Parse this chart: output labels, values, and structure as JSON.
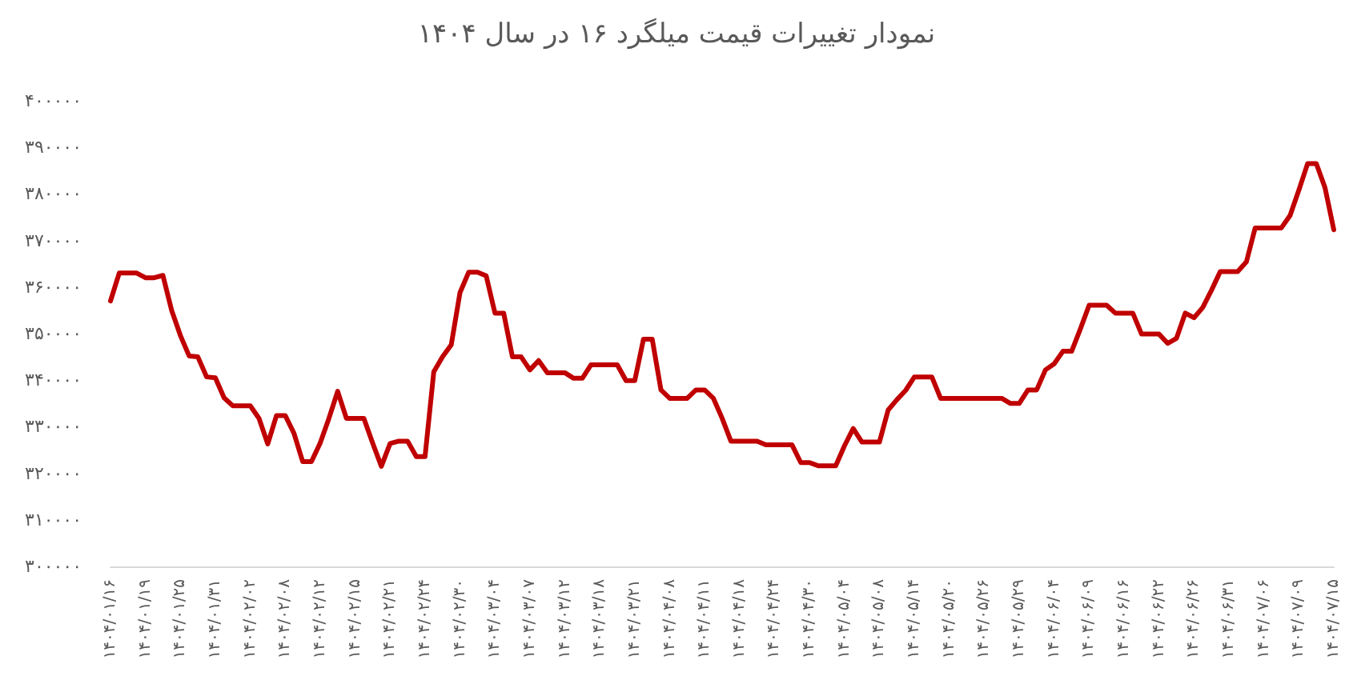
{
  "chart_data": {
    "type": "line",
    "title": "نمودار تغییرات قیمت میلگرد ۱۶ در سال ۱۴۰۴",
    "categories": [
      "۱۴۰۴/۰۱/۱۶",
      null,
      null,
      null,
      "۱۴۰۴/۰۱/۱۹",
      null,
      null,
      null,
      "۱۴۰۴/۰۱/۲۵",
      null,
      null,
      null,
      "۱۴۰۴/۰۱/۳۱",
      null,
      null,
      null,
      "۱۴۰۴/۰۲/۰۲",
      null,
      null,
      null,
      "۱۴۰۴/۰۲/۰۸",
      null,
      null,
      null,
      "۱۴۰۴/۰۲/۱۲",
      null,
      null,
      null,
      "۱۴۰۴/۰۲/۱۵",
      null,
      null,
      null,
      "۱۴۰۴/۰۲/۲۱",
      null,
      null,
      null,
      "۱۴۰۴/۰۲/۲۴",
      null,
      null,
      null,
      "۱۴۰۴/۰۲/۳۰",
      null,
      null,
      null,
      "۱۴۰۴/۰۳/۰۴",
      null,
      null,
      null,
      "۱۴۰۴/۰۳/۰۷",
      null,
      null,
      null,
      "۱۴۰۴/۰۳/۱۲",
      null,
      null,
      null,
      "۱۴۰۴/۰۳/۱۸",
      null,
      null,
      null,
      "۱۴۰۴/۰۳/۲۱",
      null,
      null,
      null,
      "۱۴۰۴/۰۴/۰۸",
      null,
      null,
      null,
      "۱۴۰۴/۰۴/۱۱",
      null,
      null,
      null,
      "۱۴۰۴/۰۴/۱۸",
      null,
      null,
      null,
      "۱۴۰۴/۰۴/۲۴",
      null,
      null,
      null,
      "۱۴۰۴/۰۴/۳۰",
      null,
      null,
      null,
      "۱۴۰۴/۰۵/۰۴",
      null,
      null,
      null,
      "۱۴۰۴/۰۵/۰۸",
      null,
      null,
      null,
      "۱۴۰۴/۰۵/۱۴",
      null,
      null,
      null,
      "۱۴۰۴/۰۵/۲۰",
      null,
      null,
      null,
      "۱۴۰۴/۰۵/۲۶",
      null,
      null,
      null,
      "۱۴۰۴/۰۵/۲۹",
      null,
      null,
      null,
      "۱۴۰۴/۰۶/۰۴",
      null,
      null,
      null,
      "۱۴۰۴/۰۶/۰۹",
      null,
      null,
      null,
      "۱۴۰۴/۰۶/۱۶",
      null,
      null,
      null,
      "۱۴۰۴/۰۶/۲۲",
      null,
      null,
      null,
      "۱۴۰۴/۰۶/۲۶",
      null,
      null,
      null,
      "۱۴۰۴/۰۶/۳۱",
      null,
      null,
      null,
      "۱۴۰۴/۰۷/۰۶",
      null,
      null,
      null,
      "۱۴۰۴/۰۷/۰۹",
      null,
      null,
      null,
      "۱۴۰۴/۰۷/۱۵"
    ],
    "series": [
      {
        "color": "#c00000",
        "values": [
          357000,
          363000,
          363000,
          363000,
          362000,
          362000,
          362500,
          355000,
          349600,
          345200,
          345000,
          340700,
          340500,
          336200,
          334500,
          334500,
          334500,
          331800,
          326300,
          332400,
          332400,
          328600,
          322500,
          322500,
          326500,
          331800,
          337600,
          331800,
          331800,
          331800,
          326500,
          321500,
          326400,
          326900,
          326900,
          323600,
          323600,
          341800,
          345000,
          347600,
          358800,
          363200,
          363200,
          362400,
          354400,
          354400,
          345000,
          345000,
          342200,
          344200,
          341600,
          341600,
          341600,
          340400,
          340400,
          343300,
          343300,
          343300,
          343300,
          339900,
          339900,
          348800,
          348800,
          337900,
          336100,
          336100,
          336100,
          337900,
          337900,
          336100,
          331800,
          326900,
          326900,
          326900,
          326900,
          326100,
          326100,
          326100,
          326100,
          322300,
          322300,
          321600,
          321600,
          321600,
          325900,
          329600,
          326700,
          326700,
          326700,
          333600,
          335800,
          337800,
          340700,
          340700,
          340700,
          336100,
          336100,
          336100,
          336100,
          336100,
          336100,
          336100,
          336100,
          335000,
          335000,
          337900,
          337900,
          342200,
          343500,
          346200,
          346200,
          351000,
          356100,
          356100,
          356100,
          354400,
          354400,
          354400,
          349900,
          349900,
          349900,
          347900,
          349000,
          354400,
          353400,
          355600,
          359300,
          363300,
          363300,
          363300,
          365400,
          372700,
          372700,
          372700,
          372700,
          375400,
          380800,
          386500,
          386500,
          381300,
          372300
        ]
      }
    ],
    "ylim": [
      300000,
      400000
    ],
    "yticks": [
      {
        "value": 300000,
        "label": "۳۰۰۰۰۰"
      },
      {
        "value": 310000,
        "label": "۳۱۰۰۰۰"
      },
      {
        "value": 320000,
        "label": "۳۲۰۰۰۰"
      },
      {
        "value": 330000,
        "label": "۳۳۰۰۰۰"
      },
      {
        "value": 340000,
        "label": "۳۴۰۰۰۰"
      },
      {
        "value": 350000,
        "label": "۳۵۰۰۰۰"
      },
      {
        "value": 360000,
        "label": "۳۶۰۰۰۰"
      },
      {
        "value": 370000,
        "label": "۳۷۰۰۰۰"
      },
      {
        "value": 380000,
        "label": "۳۸۰۰۰۰"
      },
      {
        "value": 390000,
        "label": "۳۹۰۰۰۰"
      },
      {
        "value": 400000,
        "label": "۴۰۰۰۰۰"
      }
    ],
    "marker": "none",
    "line_style": "solid"
  }
}
